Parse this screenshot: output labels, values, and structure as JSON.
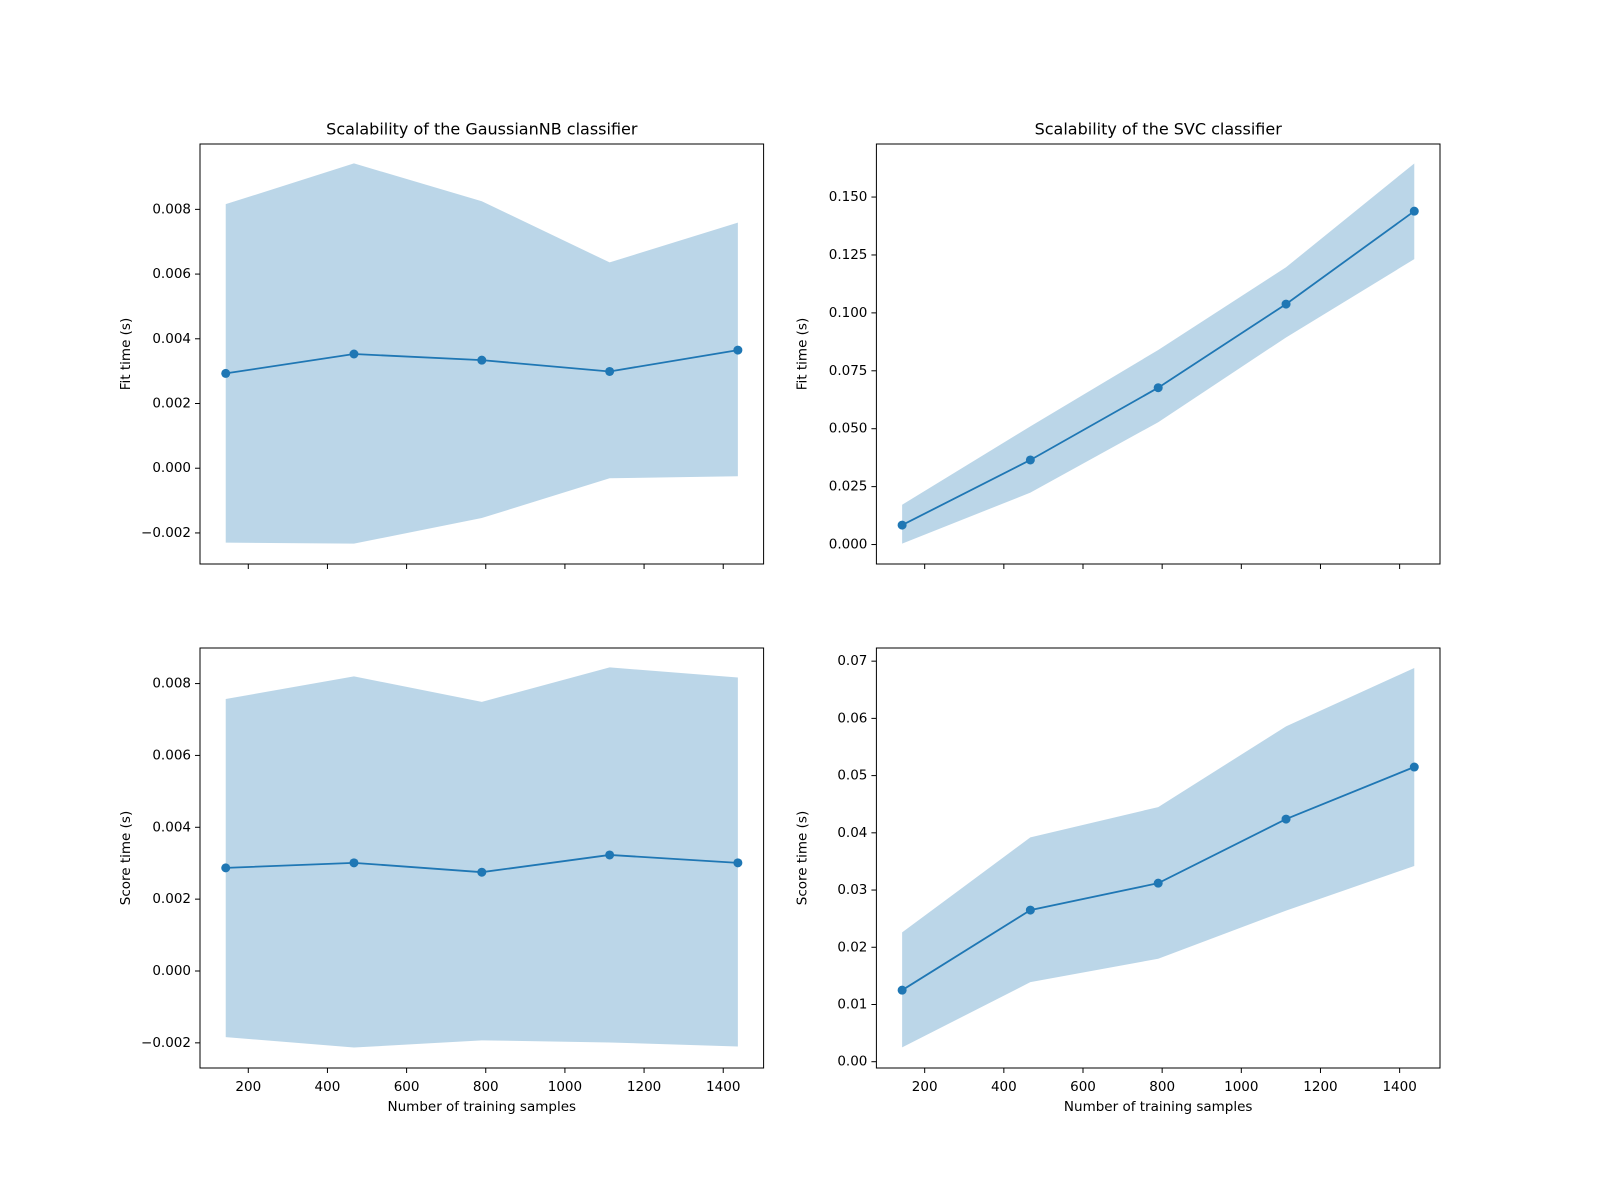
{
  "chart_data": [
    {
      "type": "line",
      "title": "Scalability of the GaussianNB classifier",
      "ylabel": "Fit time (s)",
      "x": [
        143,
        467,
        790,
        1113,
        1437
      ],
      "values": [
        0.00293,
        0.00353,
        0.00334,
        0.00299,
        0.00365
      ],
      "lower": [
        -0.0023,
        -0.00233,
        -0.00154,
        -0.00031,
        -0.00025
      ],
      "upper": [
        0.00816,
        0.00942,
        0.00825,
        0.00636,
        0.00759
      ],
      "color": "#1f77b4",
      "xlim": [
        78,
        1502
      ],
      "ylim": [
        -0.00296,
        0.01002
      ],
      "xticks": [
        200,
        400,
        600,
        800,
        1000,
        1200,
        1400
      ],
      "yticks": [
        {
          "value": -0.002,
          "label": "−0.002"
        },
        {
          "value": 0,
          "label": "0.000"
        },
        0.002,
        0.004,
        0.006,
        0.008
      ]
    },
    {
      "type": "line",
      "title": "Scalability of the SVC classifier",
      "ylabel": "Fit time (s)",
      "x": [
        143,
        467,
        790,
        1113,
        1437
      ],
      "values": [
        0.0084,
        0.0365,
        0.0677,
        0.1038,
        0.1439
      ],
      "lower": [
        0.0004,
        0.0224,
        0.0528,
        0.0894,
        0.1232
      ],
      "upper": [
        0.0172,
        0.051,
        0.084,
        0.1197,
        0.1645
      ],
      "color": "#1f77b4",
      "xlim": [
        78,
        1502
      ],
      "ylim": [
        -0.0084,
        0.1729
      ],
      "xticks": [
        200,
        400,
        600,
        800,
        1000,
        1200,
        1400
      ],
      "yticks": [
        {
          "value": 0,
          "label": "0.000"
        },
        0.025,
        {
          "value": 0.05,
          "label": "0.050"
        },
        0.075,
        {
          "value": 0.1,
          "label": "0.100"
        },
        0.125,
        {
          "value": 0.15,
          "label": "0.150"
        }
      ]
    },
    {
      "type": "line",
      "xlabel": "Number of training samples",
      "ylabel": "Score time (s)",
      "x": [
        143,
        467,
        790,
        1113,
        1437
      ],
      "values": [
        0.00287,
        0.00301,
        0.00275,
        0.00323,
        0.00301
      ],
      "lower": [
        -0.00184,
        -0.00213,
        -0.00193,
        -0.00199,
        -0.0021
      ],
      "upper": [
        0.00757,
        0.0082,
        0.00749,
        0.00845,
        0.00817
      ],
      "color": "#1f77b4",
      "xlim": [
        78,
        1502
      ],
      "ylim": [
        -0.0027,
        0.00899
      ],
      "xticks": [
        200,
        400,
        600,
        800,
        1000,
        1200,
        1400
      ],
      "yticks": [
        {
          "value": -0.002,
          "label": "−0.002"
        },
        {
          "value": 0,
          "label": "0.000"
        },
        0.002,
        0.004,
        0.006,
        0.008
      ]
    },
    {
      "type": "line",
      "xlabel": "Number of training samples",
      "ylabel": "Score time (s)",
      "x": [
        143,
        467,
        790,
        1113,
        1437
      ],
      "values": [
        0.0125,
        0.0265,
        0.0312,
        0.0424,
        0.0515
      ],
      "lower": [
        0.0025,
        0.0139,
        0.018,
        0.0264,
        0.0342
      ],
      "upper": [
        0.0226,
        0.0392,
        0.0445,
        0.0586,
        0.0688
      ],
      "color": "#1f77b4",
      "xlim": [
        78,
        1502
      ],
      "ylim": [
        -0.0011,
        0.0723
      ],
      "xticks": [
        200,
        400,
        600,
        800,
        1000,
        1200,
        1400
      ],
      "yticks": [
        {
          "value": 0,
          "label": "0.00"
        },
        0.01,
        0.02,
        0.03,
        0.04,
        0.05,
        0.06,
        0.07
      ]
    }
  ]
}
